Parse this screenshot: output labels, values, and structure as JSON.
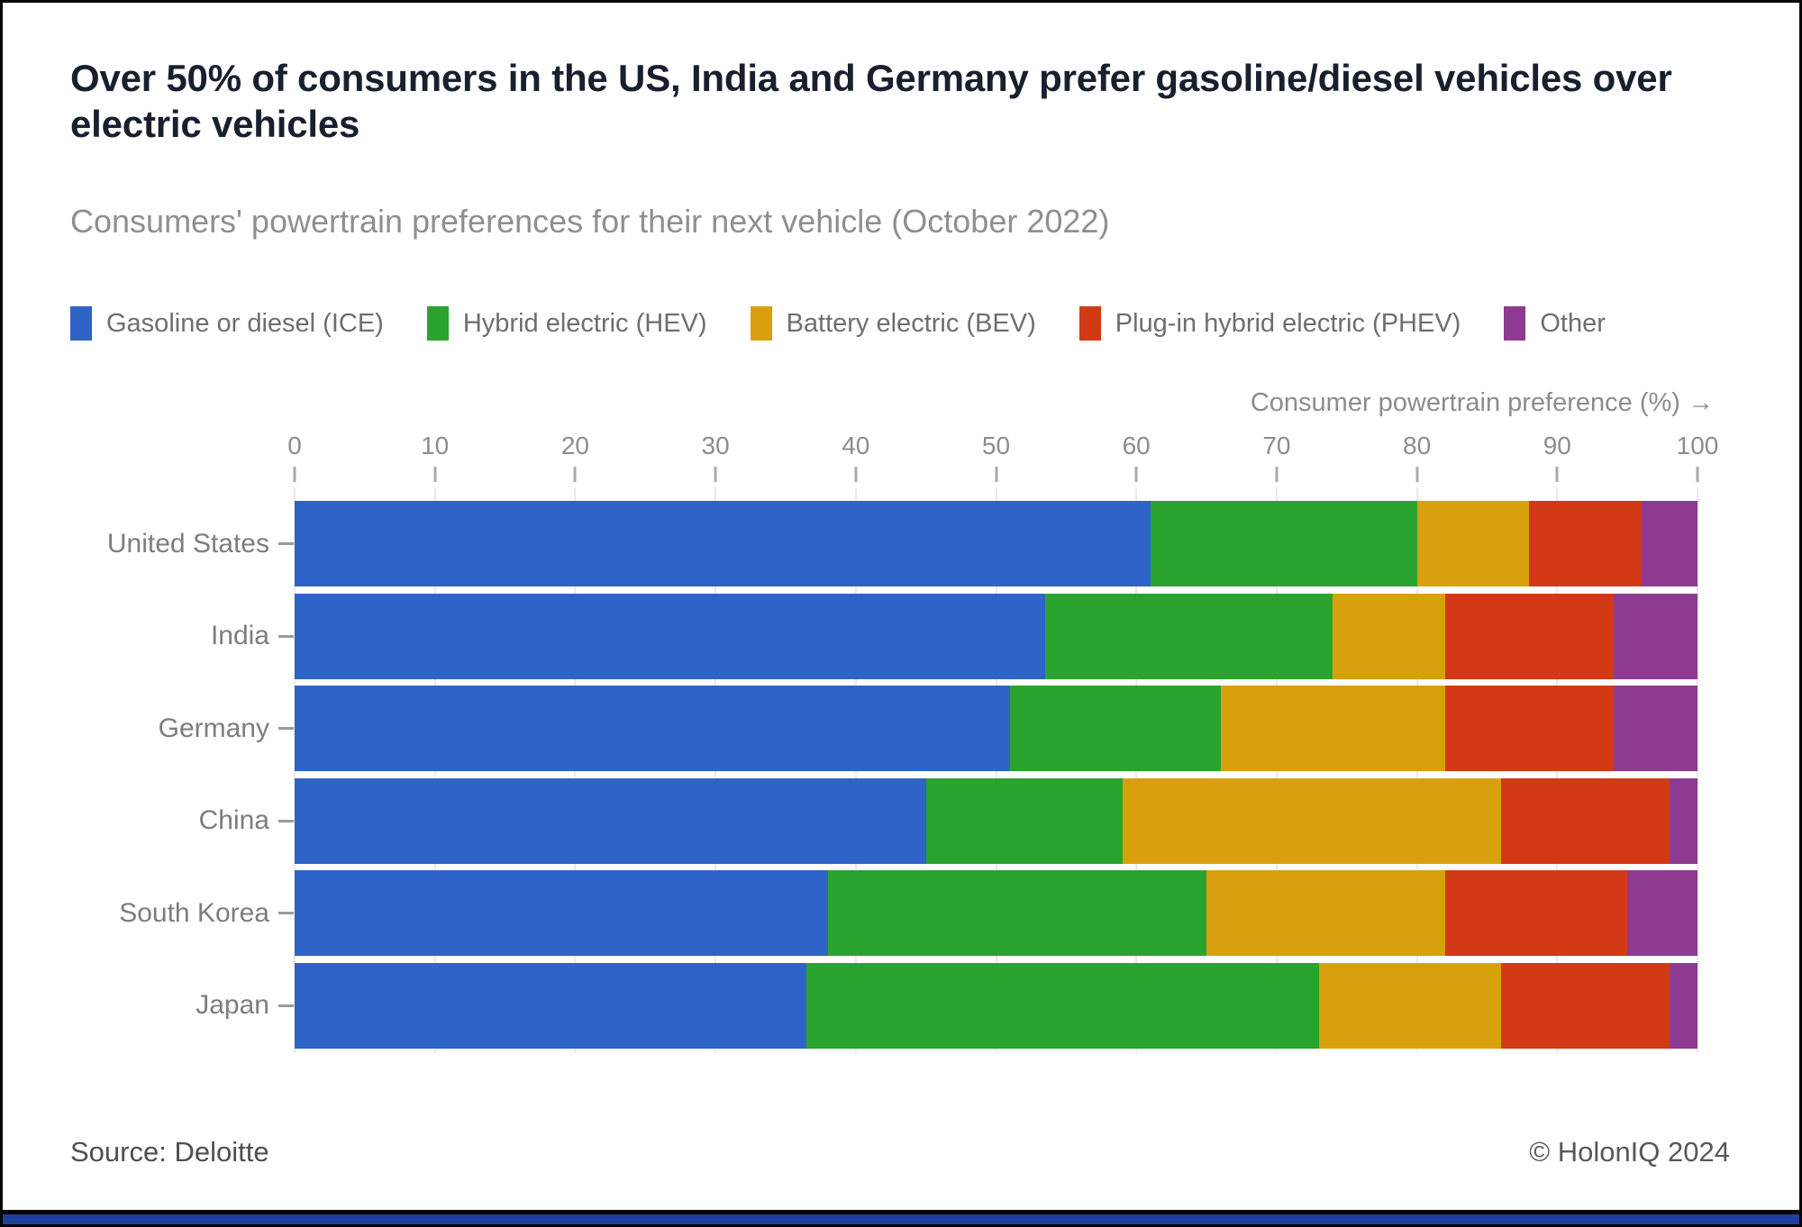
{
  "title": "Over 50% of consumers in the US, India and Germany prefer gasoline/diesel vehicles over electric vehicles",
  "subtitle": "Consumers' powertrain preferences for their next vehicle (October 2022)",
  "axis": {
    "label": "Consumer powertrain preference (%) →"
  },
  "chart_data": {
    "type": "bar",
    "stacked": true,
    "orientation": "horizontal",
    "title": "Consumers' powertrain preferences for their next vehicle (October 2022)",
    "xlabel": "Consumer powertrain preference (%)",
    "xlim": [
      0,
      100
    ],
    "xticks": [
      0,
      10,
      20,
      30,
      40,
      50,
      60,
      70,
      80,
      90,
      100
    ],
    "grid": true,
    "legend_position": "top",
    "categories": [
      "United States",
      "India",
      "Germany",
      "China",
      "South Korea",
      "Japan"
    ],
    "series": [
      {
        "name": "Gasoline or diesel (ICE)",
        "color": "#2e63c7",
        "values": [
          61,
          53.5,
          51,
          45,
          38,
          36.5
        ]
      },
      {
        "name": "Hybrid electric (HEV)",
        "color": "#2aa32f",
        "values": [
          19,
          20.5,
          15,
          14,
          27,
          36.5
        ]
      },
      {
        "name": "Battery electric (BEV)",
        "color": "#d9a00d",
        "values": [
          8,
          8,
          16,
          27,
          17,
          13
        ]
      },
      {
        "name": "Plug-in hybrid electric (PHEV)",
        "color": "#d13a15",
        "values": [
          8,
          12,
          12,
          12,
          13,
          12
        ]
      },
      {
        "name": "Other",
        "color": "#8e3a91",
        "values": [
          4,
          6,
          6,
          2,
          5,
          2
        ]
      }
    ]
  },
  "footer": {
    "source": "Source: Deloitte",
    "copyright": "© HolonIQ 2024"
  },
  "brand": {
    "accent_color": "#1e3f9e",
    "border_color": "#060608"
  }
}
